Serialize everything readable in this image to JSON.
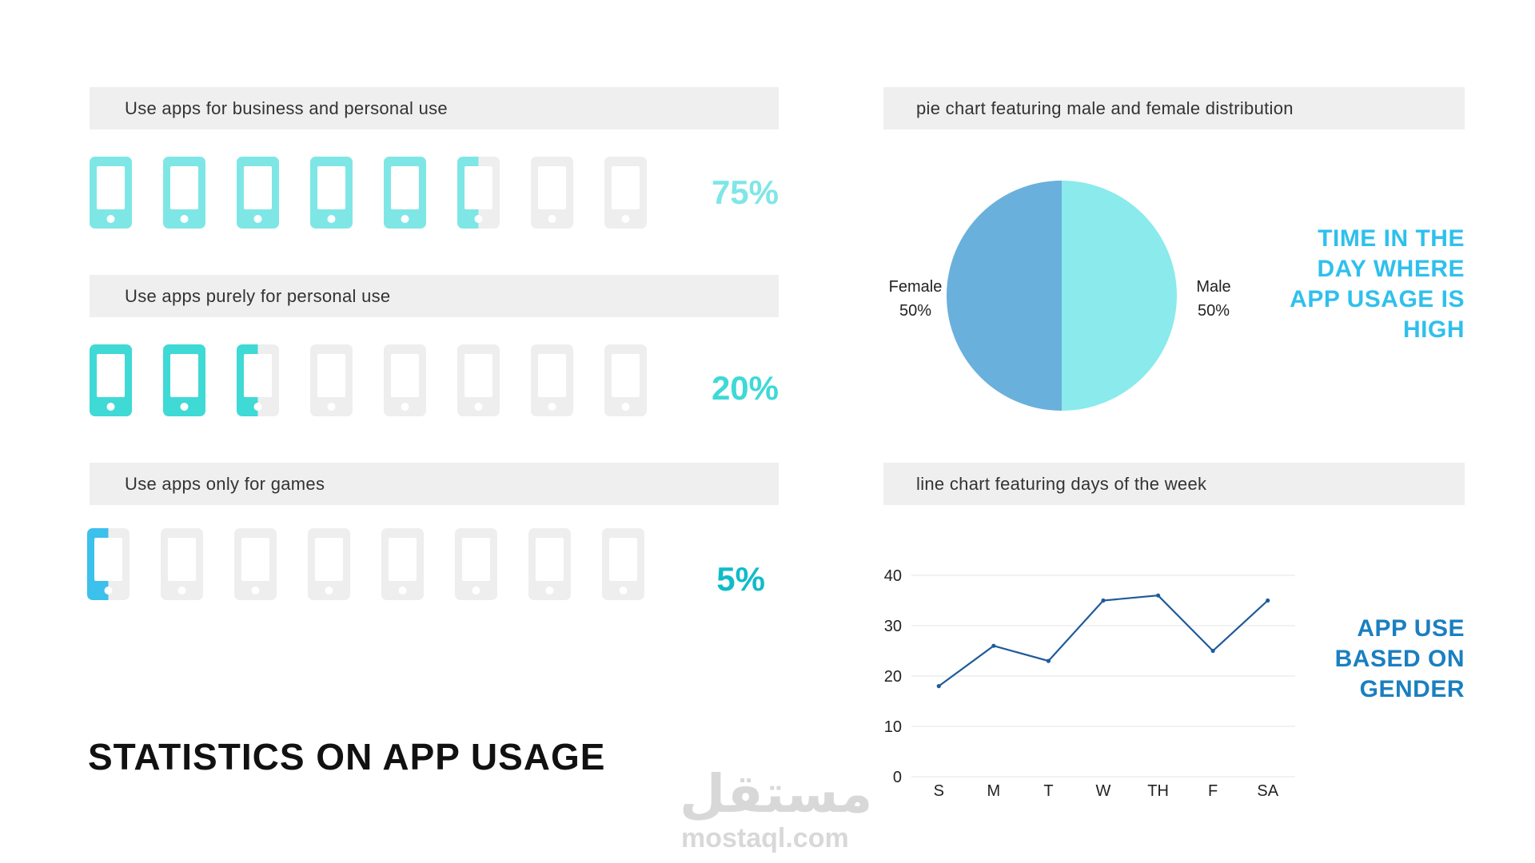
{
  "title": "STATISTICS ON APP USAGE",
  "colors": {
    "phone_gray": "#eeeeee",
    "bar_gray": "#efefef",
    "row1": "#7fe6e6",
    "row2": "#3fd9d6",
    "row3": "#3cc0ec",
    "pct1": "#7fe6e6",
    "pct2": "#3fd9d6",
    "pct3": "#10bcc8",
    "pie_female": "#6ab0dc",
    "pie_male": "#8aeaec",
    "side1": "#2fc0ec",
    "side2": "#1a7fc0",
    "line": "#1f5b9a"
  },
  "usage_rows": [
    {
      "label": "Use apps for business and personal use",
      "percent": "75%",
      "filled_phones": 5.5
    },
    {
      "label": "Use apps purely for personal use",
      "percent": "20%",
      "filled_phones": 2.5
    },
    {
      "label": "Use apps only for games",
      "percent": "5%",
      "filled_phones": 0.5
    }
  ],
  "pie_section": {
    "header": "pie chart featuring male and female distribution",
    "side_text": "TIME IN THE DAY WHERE APP USAGE IS HIGH"
  },
  "line_section": {
    "header": "line chart featuring days of the week",
    "side_text": "APP USE BASED ON GENDER"
  },
  "chart_data": [
    {
      "type": "pie",
      "slices": [
        {
          "label": "Female",
          "value": 50,
          "display": "50%"
        },
        {
          "label": "Male",
          "value": 50,
          "display": "50%"
        }
      ]
    },
    {
      "type": "line",
      "categories": [
        "S",
        "M",
        "T",
        "W",
        "TH",
        "F",
        "SA"
      ],
      "series": [
        {
          "values": [
            18,
            26,
            23,
            35,
            36,
            25,
            35
          ]
        }
      ],
      "ylim": [
        0,
        40
      ],
      "yticks": [
        0,
        10,
        20,
        30,
        40
      ],
      "grid": true
    }
  ],
  "watermark": {
    "arabic": "مستقل",
    "latin": "mostaql.com"
  }
}
